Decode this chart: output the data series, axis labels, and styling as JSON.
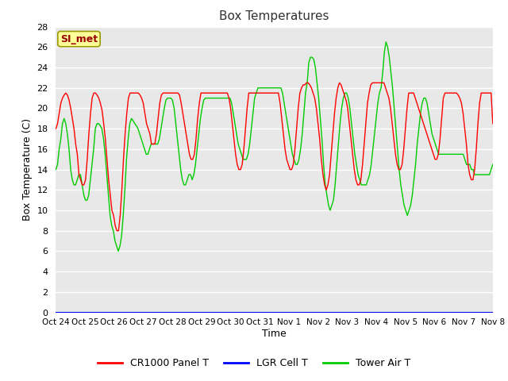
{
  "title": "Box Temperatures",
  "xlabel": "Time",
  "ylabel": "Box Temperature (C)",
  "ylim": [
    0,
    28
  ],
  "yticks": [
    0,
    2,
    4,
    6,
    8,
    10,
    12,
    14,
    16,
    18,
    20,
    22,
    24,
    26,
    28
  ],
  "x_labels": [
    "Oct 24",
    "Oct 25",
    "Oct 26",
    "Oct 27",
    "Oct 28",
    "Oct 29",
    "Oct 30",
    "Oct 31",
    "Nov 1",
    "Nov 2",
    "Nov 3",
    "Nov 4",
    "Nov 5",
    "Nov 6",
    "Nov 7",
    "Nov 8"
  ],
  "plot_bg": "#e8e8e8",
  "fig_bg": "#ffffff",
  "grid_color": "#ffffff",
  "legend_entries": [
    "CR1000 Panel T",
    "LGR Cell T",
    "Tower Air T"
  ],
  "legend_colors": [
    "#ff0000",
    "#0000ff",
    "#00cc00"
  ],
  "annotation_text": "SI_met",
  "annotation_bg": "#ffff99",
  "annotation_border": "#999900",
  "panel_T": [
    18.0,
    18.5,
    19.5,
    20.5,
    21.0,
    21.3,
    21.5,
    21.3,
    20.8,
    20.0,
    19.0,
    18.0,
    16.5,
    15.5,
    13.5,
    13.0,
    12.5,
    12.5,
    13.0,
    15.0,
    17.5,
    19.5,
    21.0,
    21.5,
    21.5,
    21.3,
    21.0,
    20.5,
    19.8,
    18.5,
    17.0,
    15.0,
    13.0,
    11.5,
    10.0,
    9.5,
    8.5,
    8.0,
    8.0,
    9.5,
    12.0,
    15.0,
    17.5,
    19.5,
    21.0,
    21.5,
    21.5,
    21.5,
    21.5,
    21.5,
    21.5,
    21.3,
    21.0,
    20.5,
    19.5,
    18.5,
    18.0,
    17.5,
    16.5,
    16.5,
    16.5,
    17.5,
    19.0,
    20.5,
    21.3,
    21.5,
    21.5,
    21.5,
    21.5,
    21.5,
    21.5,
    21.5,
    21.5,
    21.5,
    21.5,
    21.3,
    20.5,
    19.5,
    18.5,
    17.5,
    16.5,
    15.5,
    15.0,
    15.0,
    15.5,
    17.0,
    19.0,
    20.5,
    21.5,
    21.5,
    21.5,
    21.5,
    21.5,
    21.5,
    21.5,
    21.5,
    21.5,
    21.5,
    21.5,
    21.5,
    21.5,
    21.5,
    21.5,
    21.5,
    21.5,
    21.0,
    20.0,
    18.5,
    17.0,
    15.5,
    14.5,
    14.0,
    14.0,
    14.5,
    16.0,
    18.0,
    20.0,
    21.5,
    21.5,
    21.5,
    21.5,
    21.5,
    21.5,
    21.5,
    21.5,
    21.5,
    21.5,
    21.5,
    21.5,
    21.5,
    21.5,
    21.5,
    21.5,
    21.5,
    21.5,
    21.5,
    20.5,
    19.0,
    17.5,
    16.0,
    15.0,
    14.5,
    14.0,
    14.0,
    14.5,
    16.0,
    18.0,
    20.0,
    21.5,
    22.0,
    22.3,
    22.3,
    22.5,
    22.5,
    22.3,
    22.0,
    21.5,
    21.0,
    20.0,
    18.5,
    17.0,
    15.0,
    13.5,
    12.5,
    12.0,
    12.5,
    13.5,
    15.5,
    17.5,
    19.5,
    21.0,
    22.0,
    22.5,
    22.3,
    21.8,
    21.3,
    20.8,
    20.0,
    18.5,
    17.0,
    15.5,
    14.0,
    13.0,
    12.5,
    12.5,
    13.0,
    14.5,
    16.5,
    18.5,
    20.5,
    21.5,
    22.3,
    22.5,
    22.5,
    22.5,
    22.5,
    22.5,
    22.5,
    22.5,
    22.5,
    22.0,
    21.5,
    21.0,
    20.0,
    18.5,
    17.0,
    15.5,
    14.5,
    14.0,
    14.0,
    14.5,
    16.0,
    18.0,
    20.0,
    21.5,
    21.5,
    21.5,
    21.5,
    21.0,
    20.5,
    20.0,
    19.5,
    19.0,
    18.5,
    18.0,
    17.5,
    17.0,
    16.5,
    16.0,
    15.5,
    15.0,
    15.0,
    15.5,
    17.0,
    19.0,
    21.0,
    21.5,
    21.5,
    21.5,
    21.5,
    21.5,
    21.5,
    21.5,
    21.5,
    21.3,
    21.0,
    20.5,
    19.5,
    18.0,
    16.5,
    14.5,
    13.5,
    13.0,
    13.0,
    14.0,
    16.0,
    18.5,
    20.5,
    21.5,
    21.5,
    21.5,
    21.5,
    21.5,
    21.5,
    21.5,
    18.5
  ],
  "tower_T": [
    14.0,
    14.5,
    16.0,
    17.0,
    18.5,
    19.0,
    18.5,
    17.5,
    16.0,
    14.0,
    13.0,
    12.5,
    12.5,
    13.0,
    13.5,
    13.5,
    12.5,
    11.5,
    11.0,
    11.0,
    11.5,
    13.0,
    14.5,
    16.0,
    18.0,
    18.5,
    18.5,
    18.3,
    18.0,
    17.0,
    15.5,
    13.5,
    11.5,
    9.5,
    8.5,
    8.0,
    7.0,
    6.5,
    6.0,
    6.5,
    7.5,
    9.5,
    12.0,
    15.0,
    17.0,
    18.5,
    19.0,
    18.8,
    18.5,
    18.3,
    18.0,
    17.5,
    17.0,
    16.5,
    16.0,
    15.5,
    15.5,
    16.0,
    16.5,
    16.5,
    16.5,
    16.5,
    16.5,
    17.0,
    18.0,
    19.0,
    20.0,
    20.8,
    21.0,
    21.0,
    21.0,
    20.8,
    20.0,
    18.5,
    17.0,
    15.5,
    14.0,
    13.0,
    12.5,
    12.5,
    13.0,
    13.5,
    13.5,
    13.0,
    13.5,
    14.5,
    16.0,
    17.5,
    19.0,
    20.0,
    20.8,
    21.0,
    21.0,
    21.0,
    21.0,
    21.0,
    21.0,
    21.0,
    21.0,
    21.0,
    21.0,
    21.0,
    21.0,
    21.0,
    21.0,
    21.0,
    21.0,
    20.5,
    19.5,
    18.5,
    17.5,
    16.5,
    16.0,
    15.5,
    15.0,
    15.0,
    15.0,
    15.5,
    16.5,
    18.0,
    19.5,
    21.0,
    21.5,
    22.0,
    22.0,
    22.0,
    22.0,
    22.0,
    22.0,
    22.0,
    22.0,
    22.0,
    22.0,
    22.0,
    22.0,
    22.0,
    22.0,
    22.0,
    21.5,
    20.5,
    19.5,
    18.5,
    17.5,
    16.5,
    15.5,
    15.0,
    14.5,
    14.5,
    15.0,
    16.0,
    17.5,
    19.5,
    21.5,
    22.5,
    24.5,
    25.0,
    25.0,
    24.8,
    24.0,
    22.5,
    21.0,
    19.0,
    17.0,
    14.5,
    12.5,
    11.5,
    10.5,
    10.0,
    10.5,
    11.0,
    12.5,
    14.5,
    16.5,
    18.5,
    20.0,
    21.0,
    21.5,
    21.5,
    21.0,
    20.0,
    18.5,
    17.0,
    15.5,
    14.5,
    13.5,
    13.0,
    12.5,
    12.5,
    12.5,
    12.5,
    13.0,
    13.5,
    14.5,
    16.0,
    17.5,
    19.0,
    20.5,
    21.5,
    22.0,
    23.5,
    25.5,
    26.5,
    26.0,
    25.0,
    23.5,
    22.0,
    20.0,
    18.0,
    16.0,
    14.0,
    12.5,
    11.5,
    10.5,
    10.0,
    9.5,
    10.0,
    10.5,
    11.5,
    13.0,
    14.5,
    16.5,
    18.0,
    19.5,
    20.5,
    21.0,
    21.0,
    20.5,
    19.5,
    18.5,
    17.5,
    17.0,
    16.5,
    16.0,
    15.5,
    15.5,
    15.5,
    15.5,
    15.5,
    15.5,
    15.5,
    15.5,
    15.5,
    15.5,
    15.5,
    15.5,
    15.5,
    15.5,
    15.5,
    15.5,
    15.0,
    14.5,
    14.5,
    14.5,
    14.0,
    14.0,
    13.5,
    13.5,
    13.5,
    13.5,
    13.5,
    13.5,
    13.5,
    13.5,
    13.5,
    13.5,
    14.0,
    14.5
  ],
  "lgr_T": 0.0,
  "n_days": 15
}
